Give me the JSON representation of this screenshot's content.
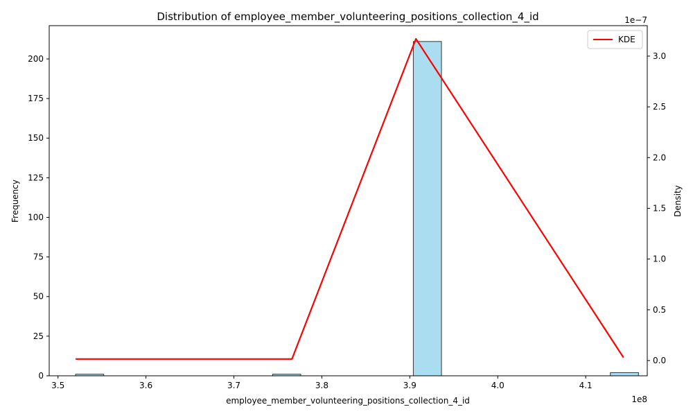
{
  "chart_data": {
    "type": "bar",
    "title": "Distribution of employee_member_volunteering_positions_collection_4_id",
    "xlabel": "employee_member_volunteering_positions_collection_4_id",
    "ylabel": "Frequency",
    "y2label": "Density",
    "x_offset_label": "1e8",
    "y2_offset_label": "1e−7",
    "xlim": [
      349000000,
      417000000
    ],
    "ylim": [
      0,
      221
    ],
    "y2lim": [
      -1.5e-08,
      3.3e-07
    ],
    "x_ticks": [
      {
        "value": 350000000,
        "label": "3.5"
      },
      {
        "value": 360000000,
        "label": "3.6"
      },
      {
        "value": 370000000,
        "label": "3.7"
      },
      {
        "value": 380000000,
        "label": "3.8"
      },
      {
        "value": 390000000,
        "label": "3.9"
      },
      {
        "value": 400000000,
        "label": "4.0"
      },
      {
        "value": 410000000,
        "label": "4.1"
      }
    ],
    "y_ticks": [
      {
        "value": 0,
        "label": "0"
      },
      {
        "value": 25,
        "label": "25"
      },
      {
        "value": 50,
        "label": "50"
      },
      {
        "value": 75,
        "label": "75"
      },
      {
        "value": 100,
        "label": "100"
      },
      {
        "value": 125,
        "label": "125"
      },
      {
        "value": 150,
        "label": "150"
      },
      {
        "value": 175,
        "label": "175"
      },
      {
        "value": 200,
        "label": "200"
      }
    ],
    "y2_ticks": [
      {
        "value": 0,
        "label": "0.0"
      },
      {
        "value": 5e-08,
        "label": "0.5"
      },
      {
        "value": 1e-07,
        "label": "1.0"
      },
      {
        "value": 1.5e-07,
        "label": "1.5"
      },
      {
        "value": 2e-07,
        "label": "2.0"
      },
      {
        "value": 2.5e-07,
        "label": "2.5"
      },
      {
        "value": 3e-07,
        "label": "3.0"
      }
    ],
    "histogram": {
      "bin_edges": [
        352000000,
        355200000,
        358400000,
        361600000,
        364800000,
        368000000,
        371200000,
        374400000,
        377600000,
        380800000,
        384000000,
        387200000,
        390400000,
        393600000,
        396800000,
        400000000,
        403200000,
        406400000,
        409600000,
        412800000,
        416000000
      ],
      "counts": [
        1,
        0,
        0,
        0,
        0,
        0,
        0,
        1,
        0,
        0,
        0,
        0,
        211,
        0,
        0,
        0,
        0,
        0,
        0,
        2
      ],
      "fill_color": "#87ceeb",
      "edge_color": "#333333"
    },
    "series": [
      {
        "name": "KDE",
        "color": "#ff0000",
        "x": [
          352000000,
          376600000,
          390700000,
          414300000
        ],
        "values": [
          1.5e-09,
          1.5e-09,
          3.17e-07,
          3e-09
        ]
      }
    ],
    "legend_position": "top-right",
    "grid": false
  }
}
